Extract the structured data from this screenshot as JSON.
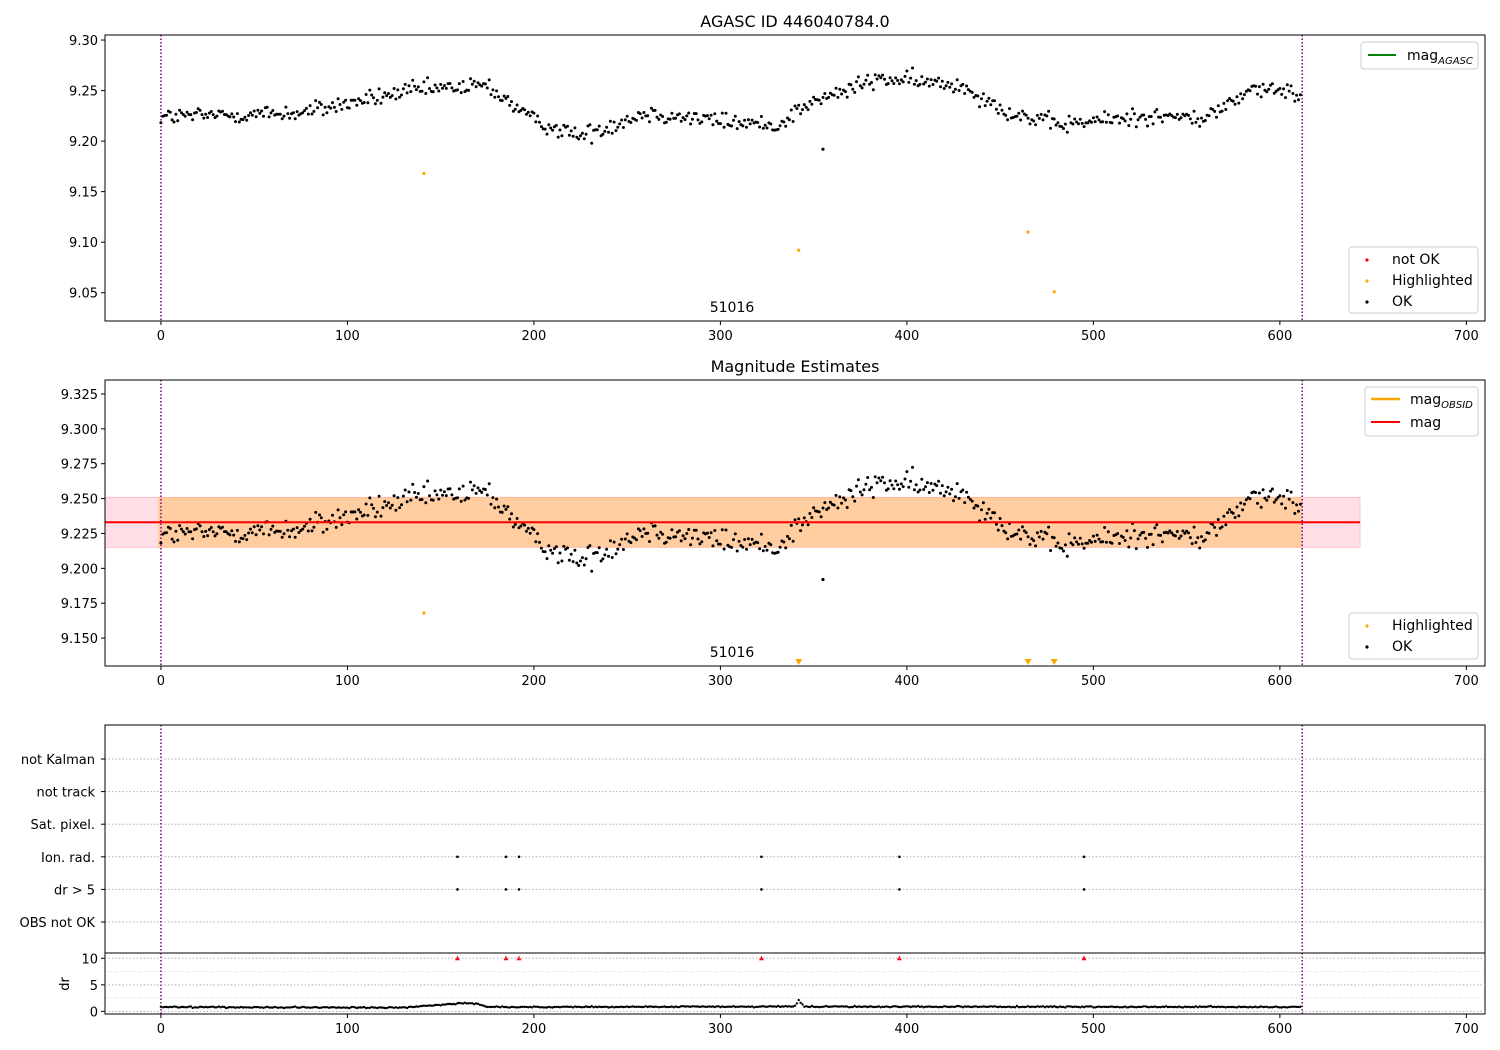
{
  "chart_data": [
    {
      "type": "scatter",
      "title": "AGASC ID 446040784.0",
      "xlim": [
        -30,
        710
      ],
      "ylim": [
        9.022,
        9.305
      ],
      "xticks": [
        "0",
        "100",
        "200",
        "300",
        "400",
        "500",
        "600",
        "700"
      ],
      "yticks": [
        "9.05",
        "9.10",
        "9.15",
        "9.20",
        "9.25",
        "9.30"
      ],
      "grid": false,
      "annotation": "51016",
      "vlines": [
        0,
        612
      ],
      "line_legend": {
        "placement": "top-right",
        "entries": [
          {
            "label": "mag",
            "subscript": "AGASC",
            "color": "#008000"
          }
        ]
      },
      "marker_legend": {
        "placement": "bottom-right",
        "entries": [
          {
            "label": "not OK",
            "color": "#ff0000"
          },
          {
            "label": "Highlighted",
            "color": "#ffa500"
          },
          {
            "label": "OK",
            "color": "#000000"
          }
        ]
      },
      "series": [
        {
          "name": "OK",
          "color": "#000000",
          "n_points": 612,
          "segments": [
            [
              0,
              9.224
            ],
            [
              75,
              9.228
            ],
            [
              135,
              9.25
            ],
            [
              175,
              9.255
            ],
            [
              200,
              9.22
            ],
            [
              225,
              9.205
            ],
            [
              260,
              9.228
            ],
            [
              300,
              9.22
            ],
            [
              330,
              9.215
            ],
            [
              345,
              9.235
            ],
            [
              385,
              9.262
            ],
            [
              430,
              9.255
            ],
            [
              455,
              9.228
            ],
            [
              480,
              9.216
            ],
            [
              530,
              9.225
            ],
            [
              560,
              9.222
            ],
            [
              585,
              9.252
            ],
            [
              612,
              9.246
            ]
          ]
        },
        {
          "name": "Highlighted",
          "color": "#ffa500",
          "points": [
            [
              141,
              9.168
            ],
            [
              342,
              9.092
            ],
            [
              465,
              9.11
            ],
            [
              479,
              9.051
            ]
          ]
        }
      ]
    },
    {
      "type": "scatter",
      "title": "Magnitude Estimates",
      "xlim": [
        -30,
        710
      ],
      "ylim": [
        9.13,
        9.335
      ],
      "xticks": [
        "0",
        "100",
        "200",
        "300",
        "400",
        "500",
        "600",
        "700"
      ],
      "yticks": [
        "9.150",
        "9.175",
        "9.200",
        "9.225",
        "9.250",
        "9.275",
        "9.300",
        "9.325"
      ],
      "grid": false,
      "annotation": "51016",
      "vlines": [
        0,
        612
      ],
      "mag": 9.233,
      "band_pink": [
        9.215,
        9.251
      ],
      "band_orange": [
        9.215,
        9.251
      ],
      "band_x": [
        -30,
        643
      ],
      "line_legend": {
        "placement": "top-right",
        "entries": [
          {
            "label": "mag",
            "subscript": "OBSID",
            "color": "#ffa500"
          },
          {
            "label": "mag",
            "subscript": "",
            "color": "#ff0000"
          }
        ]
      },
      "marker_legend": {
        "placement": "bottom-right",
        "entries": [
          {
            "label": "Highlighted",
            "color": "#ffa500"
          },
          {
            "label": "OK",
            "color": "#000000"
          }
        ]
      },
      "series": [
        {
          "name": "OK",
          "color": "#000000",
          "n_points": 612,
          "segments": [
            [
              0,
              9.224
            ],
            [
              75,
              9.228
            ],
            [
              135,
              9.25
            ],
            [
              175,
              9.255
            ],
            [
              200,
              9.22
            ],
            [
              225,
              9.205
            ],
            [
              260,
              9.228
            ],
            [
              300,
              9.22
            ],
            [
              330,
              9.215
            ],
            [
              345,
              9.235
            ],
            [
              385,
              9.262
            ],
            [
              430,
              9.255
            ],
            [
              455,
              9.228
            ],
            [
              480,
              9.216
            ],
            [
              530,
              9.225
            ],
            [
              560,
              9.222
            ],
            [
              585,
              9.252
            ],
            [
              612,
              9.246
            ]
          ]
        },
        {
          "name": "Highlighted",
          "color": "#ffa500",
          "points": [
            [
              141,
              9.168
            ]
          ]
        },
        {
          "name": "Highlighted (off scale)",
          "color": "#ffa500",
          "marker": "triangle-down",
          "points": [
            [
              342,
              9.133
            ],
            [
              465,
              9.133
            ],
            [
              479,
              9.133
            ]
          ]
        }
      ]
    },
    {
      "type": "scatter",
      "title": "",
      "xlim": [
        -30,
        710
      ],
      "categories": [
        "OBS not OK",
        "dr > 5",
        "Ion. rad.",
        "Sat. pixel.",
        "not track",
        "not Kalman"
      ],
      "grid": true,
      "vlines": [
        0,
        612
      ],
      "flags": {
        "Ion. rad.": [
          159,
          185,
          192,
          322,
          396,
          495
        ],
        "dr > 5": [
          159,
          185,
          192,
          322,
          396,
          495
        ]
      }
    },
    {
      "type": "scatter",
      "title": "",
      "ylabel": "dr",
      "xlim": [
        -30,
        710
      ],
      "ylim": [
        -0.5,
        11
      ],
      "yticks": [
        "0",
        "5",
        "10"
      ],
      "xticks": [
        "0",
        "100",
        "200",
        "300",
        "400",
        "500",
        "600",
        "700"
      ],
      "grid": true,
      "vlines": [
        0,
        612
      ],
      "series": [
        {
          "name": "dr",
          "color": "#000000",
          "n_points": 612,
          "segments": [
            [
              0,
              0.8
            ],
            [
              130,
              0.7
            ],
            [
              160,
              1.5
            ],
            [
              170,
              1.4
            ],
            [
              175,
              0.8
            ],
            [
              340,
              0.9
            ],
            [
              342,
              2.0
            ],
            [
              345,
              0.9
            ],
            [
              612,
              0.8
            ]
          ]
        },
        {
          "name": "dr > 5",
          "color": "#ff0000",
          "marker": "triangle-up",
          "points": [
            [
              159,
              10
            ],
            [
              185,
              10
            ],
            [
              192,
              10
            ],
            [
              322,
              10
            ],
            [
              396,
              10
            ],
            [
              495,
              10
            ]
          ]
        }
      ]
    }
  ]
}
